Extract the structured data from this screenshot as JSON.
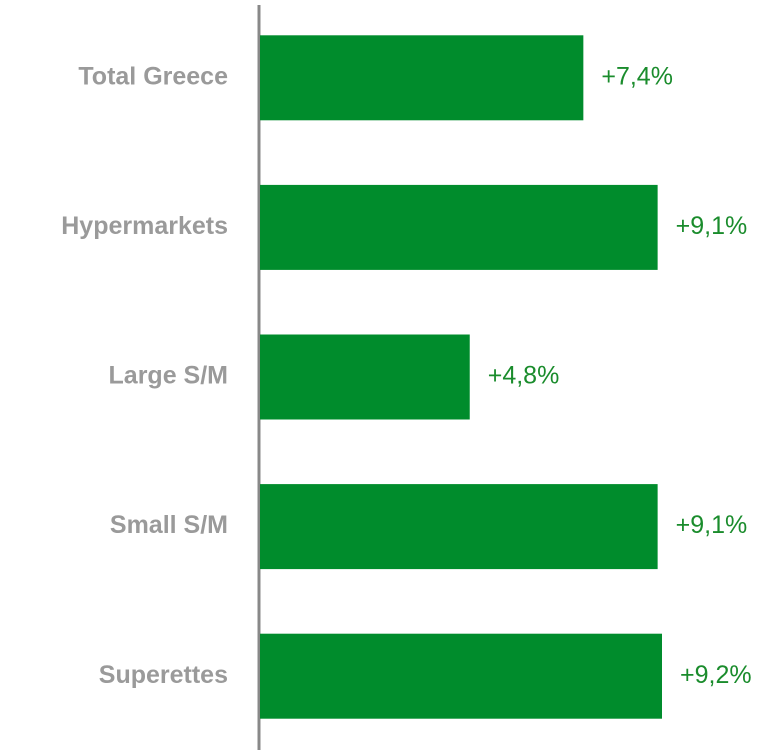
{
  "chart_data": {
    "type": "bar",
    "orientation": "horizontal",
    "categories": [
      "Total Greece",
      "Hypermarkets",
      "Large S/M",
      "Small S/M",
      "Superettes"
    ],
    "values": [
      7.4,
      9.1,
      4.8,
      9.1,
      9.2
    ],
    "value_labels": [
      "+7,4%",
      "+9,1%",
      "+4,8%",
      "+9,1%",
      "+9,2%"
    ],
    "color": "#008c2c"
  }
}
